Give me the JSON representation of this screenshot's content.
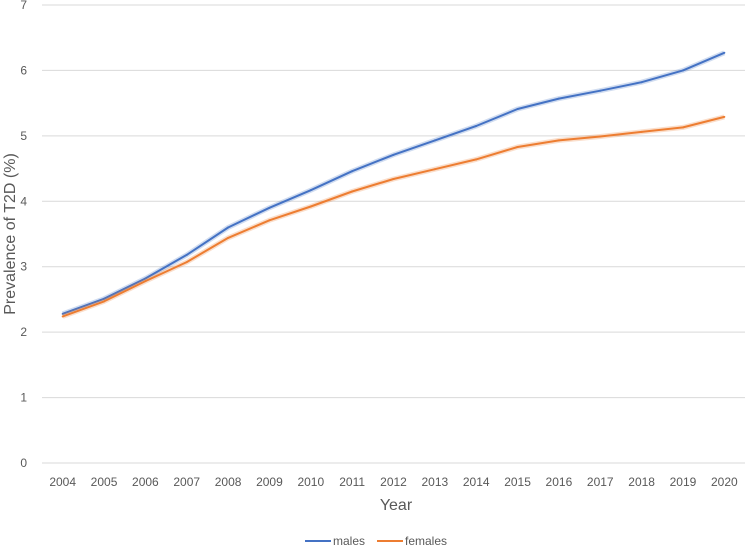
{
  "chart_data": {
    "type": "line",
    "title": "",
    "xlabel": "Year",
    "ylabel": "Prevalence of T2D (%)",
    "ylim": [
      0,
      7
    ],
    "yticks": [
      0,
      1,
      2,
      3,
      4,
      5,
      6,
      7
    ],
    "grid": true,
    "legend_position": "bottom",
    "x": [
      "2004",
      "2005",
      "2006",
      "2007",
      "2008",
      "2009",
      "2010",
      "2011",
      "2012",
      "2013",
      "2014",
      "2015",
      "2016",
      "2017",
      "2018",
      "2019",
      "2020"
    ],
    "series": [
      {
        "name": "males",
        "color": "#4472c4",
        "values": [
          2.28,
          2.51,
          2.82,
          3.18,
          3.6,
          3.9,
          4.17,
          4.46,
          4.71,
          4.93,
          5.15,
          5.41,
          5.57,
          5.69,
          5.82,
          6.0,
          6.27
        ]
      },
      {
        "name": "females",
        "color": "#ed7d31",
        "values": [
          2.24,
          2.47,
          2.78,
          3.07,
          3.44,
          3.71,
          3.92,
          4.15,
          4.34,
          4.49,
          4.64,
          4.83,
          4.93,
          4.99,
          5.06,
          5.13,
          5.29
        ]
      }
    ]
  }
}
